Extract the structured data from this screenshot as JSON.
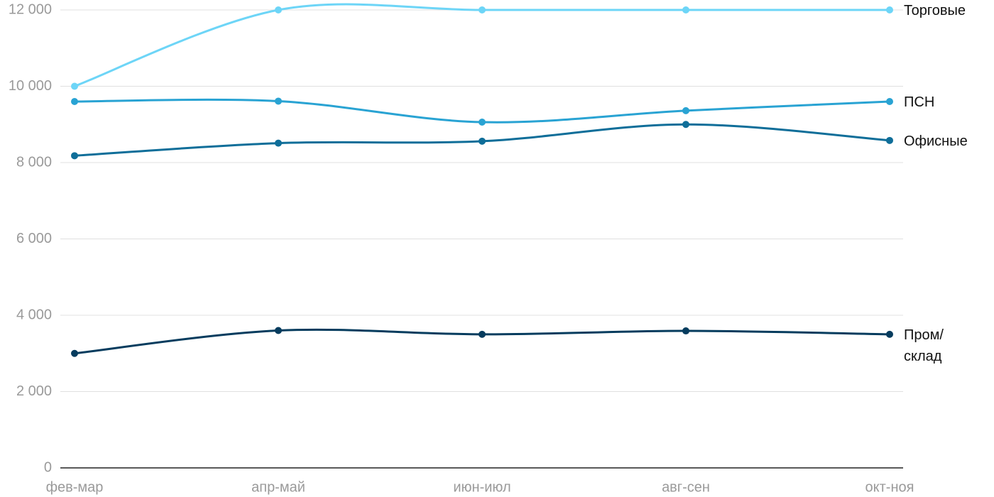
{
  "chart_data": {
    "type": "line",
    "categories": [
      "фев-мар",
      "апр-май",
      "июн-июл",
      "авг-сен",
      "окт-ноя"
    ],
    "series": [
      {
        "name": "Торговые",
        "color": "#6dd5f7",
        "values": [
          10000,
          12000,
          12000,
          12000,
          12000
        ]
      },
      {
        "name": "ПСН",
        "color": "#29a3d3",
        "values": [
          9600,
          9610,
          9060,
          9360,
          9600
        ]
      },
      {
        "name": "Офисные",
        "color": "#0f6e99",
        "values": [
          8180,
          8510,
          8560,
          9000,
          8580
        ]
      },
      {
        "name": "Пром/ склад",
        "color": "#063c5e",
        "values": [
          3000,
          3600,
          3500,
          3590,
          3500
        ]
      }
    ],
    "ylim": [
      0,
      12000
    ],
    "yticks": [
      0,
      {
        "value": 2000,
        "label": "2 000"
      },
      {
        "value": 4000,
        "label": "4 000"
      },
      {
        "value": 6000,
        "label": "6 000"
      },
      {
        "value": 8000,
        "label": "8 000"
      },
      {
        "value": 10000,
        "label": "10 000"
      },
      {
        "value": 12000,
        "label": "12 000"
      }
    ],
    "grid": true
  }
}
